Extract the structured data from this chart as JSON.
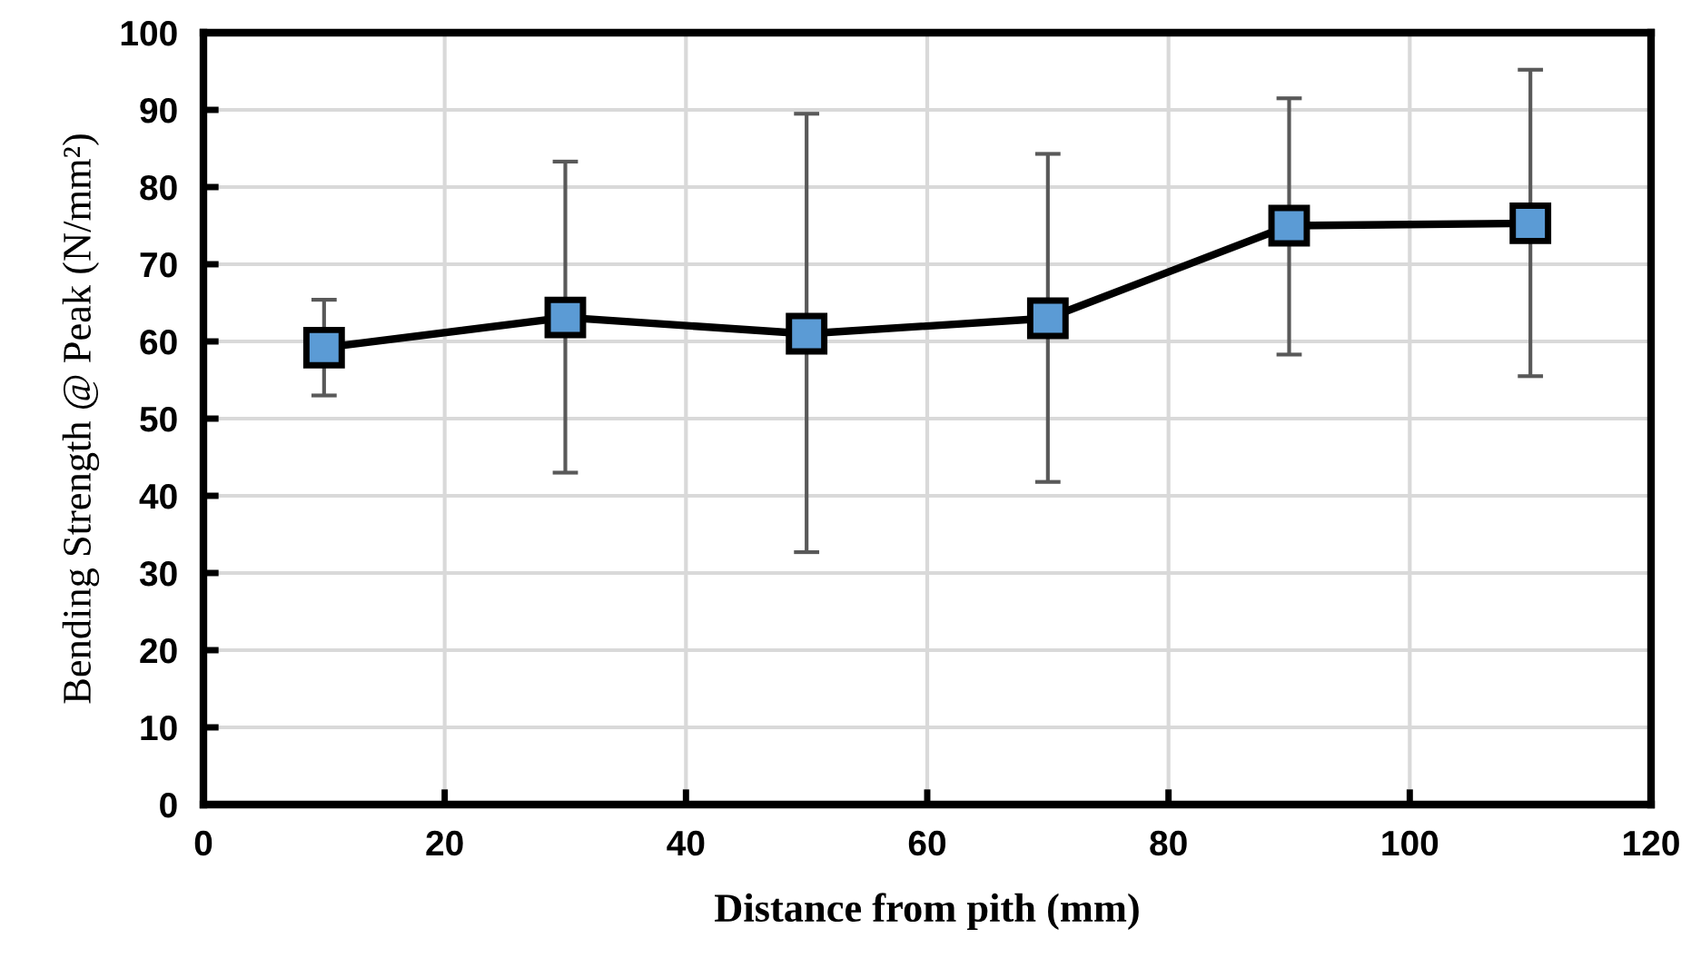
{
  "chart_data": {
    "type": "line",
    "xlabel": "Distance from pith (mm)",
    "ylabel": "Bending Strength @ Peak (N/mm²)",
    "x": [
      10,
      30,
      50,
      70,
      90,
      110
    ],
    "series": [
      {
        "color": "#5b9bd5",
        "values": [
          59.2,
          63.1,
          61.0,
          63.0,
          75.0,
          75.3
        ],
        "errors": [
          [
            53,
            65.4
          ],
          [
            43,
            83.3
          ],
          [
            32.7,
            89.5
          ],
          [
            41.8,
            84.3
          ],
          [
            58.3,
            91.5
          ],
          [
            55.5,
            95.2
          ]
        ]
      }
    ],
    "xlim": [
      0,
      120
    ],
    "xticks": [
      0,
      20,
      40,
      60,
      80,
      100,
      120
    ],
    "ylim": [
      0,
      100
    ],
    "yticks": [
      0,
      10,
      20,
      30,
      40,
      50,
      60,
      70,
      80,
      90,
      100
    ],
    "grid": true,
    "marker": "square",
    "line_style": "solid",
    "legend": false
  }
}
